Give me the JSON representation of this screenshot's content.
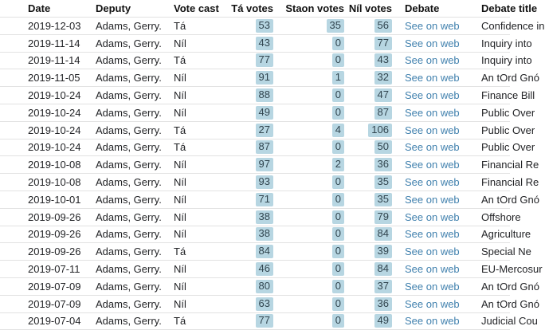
{
  "table": {
    "columns": [
      {
        "key": "date",
        "label": "Date"
      },
      {
        "key": "deputy",
        "label": "Deputy"
      },
      {
        "key": "vote_cast",
        "label": "Vote cast"
      },
      {
        "key": "ta_votes",
        "label": "Tá votes"
      },
      {
        "key": "staon_votes",
        "label": "Staon votes"
      },
      {
        "key": "nil_votes",
        "label": "Níl votes"
      },
      {
        "key": "debate",
        "label": "Debate"
      },
      {
        "key": "debate_title",
        "label": "Debate title"
      }
    ],
    "link_label": "See on web",
    "rows": [
      {
        "date": "2019-12-03",
        "deputy": "Adams, Gerry.",
        "vote_cast": "Tá",
        "ta_votes": 53,
        "staon_votes": 35,
        "nil_votes": 56,
        "debate_title": "Confidence in"
      },
      {
        "date": "2019-11-14",
        "deputy": "Adams, Gerry.",
        "vote_cast": "Níl",
        "ta_votes": 43,
        "staon_votes": 0,
        "nil_votes": 77,
        "debate_title": "Inquiry into"
      },
      {
        "date": "2019-11-14",
        "deputy": "Adams, Gerry.",
        "vote_cast": "Tá",
        "ta_votes": 77,
        "staon_votes": 0,
        "nil_votes": 43,
        "debate_title": "Inquiry into"
      },
      {
        "date": "2019-11-05",
        "deputy": "Adams, Gerry.",
        "vote_cast": "Níl",
        "ta_votes": 91,
        "staon_votes": 1,
        "nil_votes": 32,
        "debate_title": "An tOrd Gnó"
      },
      {
        "date": "2019-10-24",
        "deputy": "Adams, Gerry.",
        "vote_cast": "Níl",
        "ta_votes": 88,
        "staon_votes": 0,
        "nil_votes": 47,
        "debate_title": "Finance Bill"
      },
      {
        "date": "2019-10-24",
        "deputy": "Adams, Gerry.",
        "vote_cast": "Níl",
        "ta_votes": 49,
        "staon_votes": 0,
        "nil_votes": 87,
        "debate_title": "Public Over"
      },
      {
        "date": "2019-10-24",
        "deputy": "Adams, Gerry.",
        "vote_cast": "Tá",
        "ta_votes": 27,
        "staon_votes": 4,
        "nil_votes": 106,
        "debate_title": "Public Over"
      },
      {
        "date": "2019-10-24",
        "deputy": "Adams, Gerry.",
        "vote_cast": "Tá",
        "ta_votes": 87,
        "staon_votes": 0,
        "nil_votes": 50,
        "debate_title": "Public Over"
      },
      {
        "date": "2019-10-08",
        "deputy": "Adams, Gerry.",
        "vote_cast": "Níl",
        "ta_votes": 97,
        "staon_votes": 2,
        "nil_votes": 36,
        "debate_title": "Financial Re"
      },
      {
        "date": "2019-10-08",
        "deputy": "Adams, Gerry.",
        "vote_cast": "Níl",
        "ta_votes": 93,
        "staon_votes": 0,
        "nil_votes": 35,
        "debate_title": "Financial Re"
      },
      {
        "date": "2019-10-01",
        "deputy": "Adams, Gerry.",
        "vote_cast": "Níl",
        "ta_votes": 71,
        "staon_votes": 0,
        "nil_votes": 35,
        "debate_title": "An tOrd Gnó"
      },
      {
        "date": "2019-09-26",
        "deputy": "Adams, Gerry.",
        "vote_cast": "Níl",
        "ta_votes": 38,
        "staon_votes": 0,
        "nil_votes": 79,
        "debate_title": "Offshore"
      },
      {
        "date": "2019-09-26",
        "deputy": "Adams, Gerry.",
        "vote_cast": "Níl",
        "ta_votes": 38,
        "staon_votes": 0,
        "nil_votes": 84,
        "debate_title": "Agriculture"
      },
      {
        "date": "2019-09-26",
        "deputy": "Adams, Gerry.",
        "vote_cast": "Tá",
        "ta_votes": 84,
        "staon_votes": 0,
        "nil_votes": 39,
        "debate_title": "Special Ne"
      },
      {
        "date": "2019-07-11",
        "deputy": "Adams, Gerry.",
        "vote_cast": "Níl",
        "ta_votes": 46,
        "staon_votes": 0,
        "nil_votes": 84,
        "debate_title": "EU-Mercosur"
      },
      {
        "date": "2019-07-09",
        "deputy": "Adams, Gerry.",
        "vote_cast": "Níl",
        "ta_votes": 80,
        "staon_votes": 0,
        "nil_votes": 37,
        "debate_title": "An tOrd Gnó"
      },
      {
        "date": "2019-07-09",
        "deputy": "Adams, Gerry.",
        "vote_cast": "Níl",
        "ta_votes": 63,
        "staon_votes": 0,
        "nil_votes": 36,
        "debate_title": "An tOrd Gnó"
      },
      {
        "date": "2019-07-04",
        "deputy": "Adams, Gerry.",
        "vote_cast": "Tá",
        "ta_votes": 77,
        "staon_votes": 0,
        "nil_votes": 49,
        "debate_title": "Judicial Cou"
      }
    ]
  },
  "colors": {
    "highlight_bg": "#b7d6e2",
    "highlight_text": "#31454f",
    "link": "#4181ae",
    "row_border": "#e2e2e2",
    "header_text": "#111111",
    "body_text": "#222326"
  }
}
